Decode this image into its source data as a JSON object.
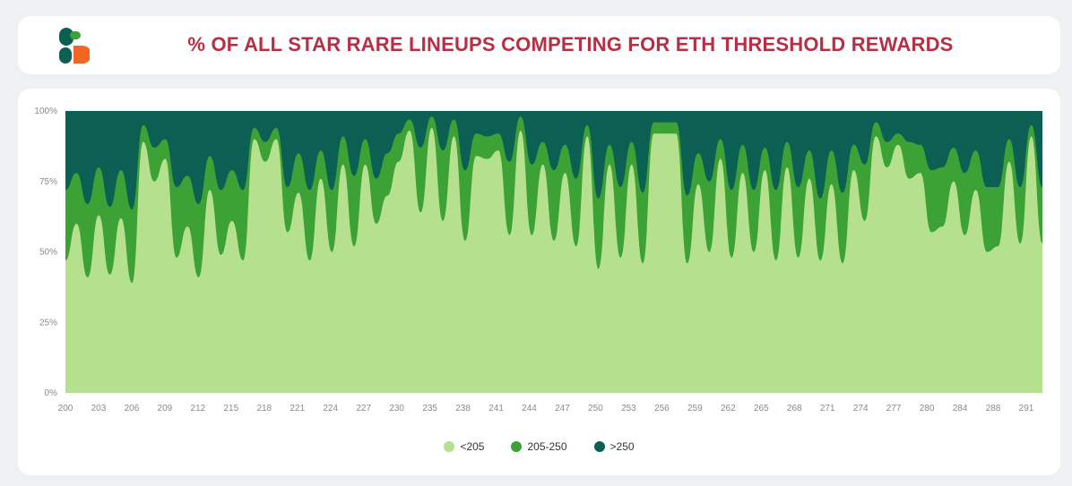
{
  "header": {
    "title": "% OF ALL STAR RARE LINEUPS COMPETING FOR ETH THRESHOLD REWARDS",
    "logo_icon": "brand-s-logo-icon"
  },
  "colors": {
    "lt205": "#b5e18f",
    "205to250": "#3da235",
    "gt250": "#0c5f53",
    "title": "#b72f45",
    "logo_dark": "#0c5f53",
    "logo_orange": "#f26522",
    "logo_green": "#3da235"
  },
  "chart_data": {
    "type": "area",
    "stacked": true,
    "normalized": true,
    "title": "% OF ALL STAR RARE LINEUPS COMPETING FOR ETH THRESHOLD REWARDS",
    "xlabel": "",
    "ylabel": "",
    "ylim": [
      0,
      100
    ],
    "yticks": [
      "0%",
      "25%",
      "50%",
      "75%",
      "100%"
    ],
    "xticks": [
      "200",
      "203",
      "206",
      "209",
      "212",
      "215",
      "218",
      "221",
      "224",
      "227",
      "230",
      "235",
      "238",
      "241",
      "244",
      "247",
      "250",
      "253",
      "256",
      "259",
      "262",
      "265",
      "268",
      "271",
      "274",
      "277",
      "280",
      "284",
      "288",
      "291"
    ],
    "grid": false,
    "legend_position": "bottom",
    "series": [
      {
        "name": "<205",
        "color": "#b5e18f",
        "values": [
          47,
          60,
          41,
          63,
          42,
          62,
          39,
          89,
          75,
          83,
          48,
          59,
          41,
          72,
          49,
          61,
          47,
          90,
          82,
          90,
          57,
          71,
          47,
          76,
          50,
          81,
          52,
          81,
          60,
          70,
          82,
          93,
          64,
          94,
          61,
          91,
          54,
          84,
          83,
          86,
          56,
          93,
          56,
          81,
          54,
          78,
          52,
          91,
          44,
          81,
          48,
          81,
          46,
          92,
          92,
          92,
          46,
          74,
          50,
          83,
          48,
          78,
          50,
          79,
          47,
          80,
          48,
          76,
          47,
          74,
          46,
          79,
          61,
          91,
          80,
          88,
          76,
          78,
          57,
          59,
          75,
          56,
          72,
          50,
          52,
          82,
          53,
          91,
          53
        ]
      },
      {
        "name": "205-250",
        "color": "#3da235",
        "values": [
          25,
          18,
          26,
          17,
          24,
          17,
          26,
          6,
          12,
          7,
          25,
          18,
          26,
          12,
          23,
          18,
          25,
          4,
          7,
          4,
          16,
          14,
          25,
          10,
          22,
          10,
          25,
          9,
          16,
          15,
          10,
          4,
          23,
          4,
          25,
          6,
          25,
          8,
          8,
          6,
          26,
          5,
          25,
          8,
          25,
          10,
          24,
          4,
          25,
          7,
          25,
          8,
          25,
          4,
          4,
          4,
          24,
          11,
          25,
          7,
          24,
          10,
          22,
          8,
          25,
          9,
          25,
          10,
          22,
          12,
          25,
          9,
          20,
          5,
          9,
          4,
          13,
          10,
          22,
          21,
          12,
          22,
          14,
          23,
          21,
          8,
          20,
          4,
          20
        ]
      },
      {
        "name": ">250",
        "color": "#0c5f53",
        "values": [
          28,
          22,
          33,
          20,
          34,
          21,
          35,
          5,
          13,
          10,
          27,
          23,
          33,
          16,
          28,
          21,
          28,
          6,
          11,
          6,
          27,
          15,
          28,
          14,
          28,
          9,
          23,
          10,
          24,
          15,
          8,
          3,
          13,
          2,
          14,
          3,
          21,
          8,
          9,
          8,
          18,
          2,
          19,
          11,
          21,
          12,
          24,
          5,
          31,
          12,
          27,
          11,
          29,
          4,
          4,
          4,
          30,
          15,
          25,
          10,
          28,
          12,
          28,
          13,
          28,
          11,
          27,
          14,
          31,
          14,
          29,
          12,
          19,
          4,
          11,
          8,
          11,
          12,
          21,
          20,
          13,
          22,
          14,
          27,
          27,
          10,
          27,
          5,
          27
        ]
      }
    ]
  },
  "legend": {
    "items": [
      {
        "label": "<205",
        "color": "#b5e18f"
      },
      {
        "label": "205-250",
        "color": "#3da235"
      },
      {
        "label": ">250",
        "color": "#0c5f53"
      }
    ]
  }
}
